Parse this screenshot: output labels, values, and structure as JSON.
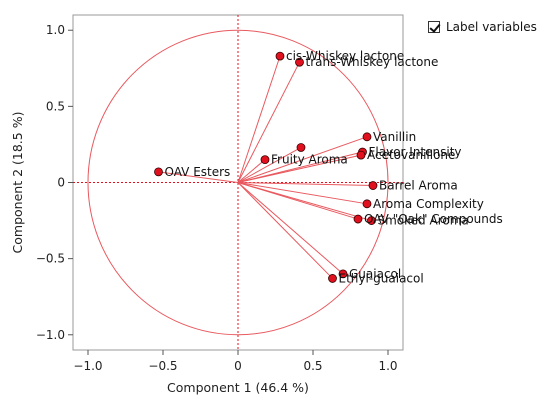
{
  "legend": {
    "label_variables": "Label variables",
    "checked": true
  },
  "chart_data": {
    "type": "scatter",
    "xlabel": "Component 1  (46.4 %)",
    "ylabel": "Component 2  (18.5 %)",
    "xlim": [
      -1.1,
      1.1
    ],
    "ylim": [
      -1.1,
      1.1
    ],
    "xticks": [
      -1.0,
      -0.5,
      0,
      0.5,
      1.0
    ],
    "yticks": [
      -1.0,
      -0.5,
      0,
      0.5,
      1.0
    ],
    "xtick_labels": [
      "−1.0",
      "−0.5",
      "0",
      "0.5",
      "1.0"
    ],
    "ytick_labels": [
      "−1.0",
      "−0.5",
      "0",
      "0.5",
      "1.0"
    ],
    "unit_circle": true,
    "point_color": "#e0101e",
    "line_color": "#e8595f",
    "points": [
      {
        "label": "cis-Whiskey lactone",
        "x": 0.28,
        "y": 0.83
      },
      {
        "label": "trans-Whiskey lactone",
        "x": 0.41,
        "y": 0.79
      },
      {
        "label": "Vanillin",
        "x": 0.86,
        "y": 0.3
      },
      {
        "label": "Flavor Intensity",
        "x": 0.83,
        "y": 0.2
      },
      {
        "label": "Acetovanillone",
        "x": 0.82,
        "y": 0.18
      },
      {
        "label": "Fruity Aroma",
        "x": 0.18,
        "y": 0.15
      },
      {
        "label": "",
        "x": 0.42,
        "y": 0.23
      },
      {
        "label": "OAV Esters",
        "x": -0.53,
        "y": 0.07
      },
      {
        "label": "Barrel Aroma",
        "x": 0.9,
        "y": -0.02
      },
      {
        "label": "Aroma Complexity",
        "x": 0.86,
        "y": -0.14
      },
      {
        "label": "Smoked Aroma",
        "x": 0.89,
        "y": -0.25
      },
      {
        "label": "OAV \"Oak\" Compounds",
        "x": 0.8,
        "y": -0.24
      },
      {
        "label": "Ethyl-guaiacol",
        "x": 0.63,
        "y": -0.63
      },
      {
        "label": "Guaiacol",
        "x": 0.7,
        "y": -0.6
      }
    ]
  }
}
